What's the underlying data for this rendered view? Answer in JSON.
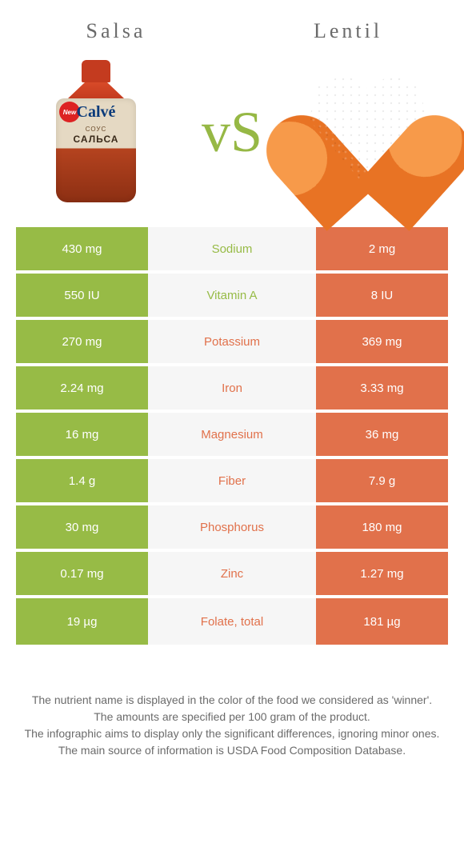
{
  "header": {
    "left_title": "Salsa",
    "right_title": "Lentil",
    "vs": "vs"
  },
  "pkg": {
    "new": "New",
    "brand": "Calvé",
    "line1": "СОУС",
    "line2": "САЛЬСА"
  },
  "colors": {
    "green": "#97bb46",
    "orange": "#e1714b",
    "mid_bg": "#f6f6f6",
    "page_bg": "#ffffff",
    "text_gray": "#6b6b6b"
  },
  "table": {
    "rows": [
      {
        "left": "430 mg",
        "nutrient": "Sodium",
        "right": "2 mg",
        "winner": "left"
      },
      {
        "left": "550 IU",
        "nutrient": "Vitamin A",
        "right": "8 IU",
        "winner": "left"
      },
      {
        "left": "270 mg",
        "nutrient": "Potassium",
        "right": "369 mg",
        "winner": "right"
      },
      {
        "left": "2.24 mg",
        "nutrient": "Iron",
        "right": "3.33 mg",
        "winner": "right"
      },
      {
        "left": "16 mg",
        "nutrient": "Magnesium",
        "right": "36 mg",
        "winner": "right"
      },
      {
        "left": "1.4 g",
        "nutrient": "Fiber",
        "right": "7.9 g",
        "winner": "right"
      },
      {
        "left": "30 mg",
        "nutrient": "Phosphorus",
        "right": "180 mg",
        "winner": "right"
      },
      {
        "left": "0.17 mg",
        "nutrient": "Zinc",
        "right": "1.27 mg",
        "winner": "right"
      },
      {
        "left": "19 µg",
        "nutrient": "Folate, total",
        "right": "181 µg",
        "winner": "right"
      }
    ]
  },
  "footnotes": [
    "The nutrient name is displayed in the color of the food we considered as 'winner'.",
    "The amounts are specified per 100 gram of the product.",
    "The infographic aims to display only the significant differences, ignoring minor ones.",
    "The main source of information is USDA Food Composition Database."
  ]
}
